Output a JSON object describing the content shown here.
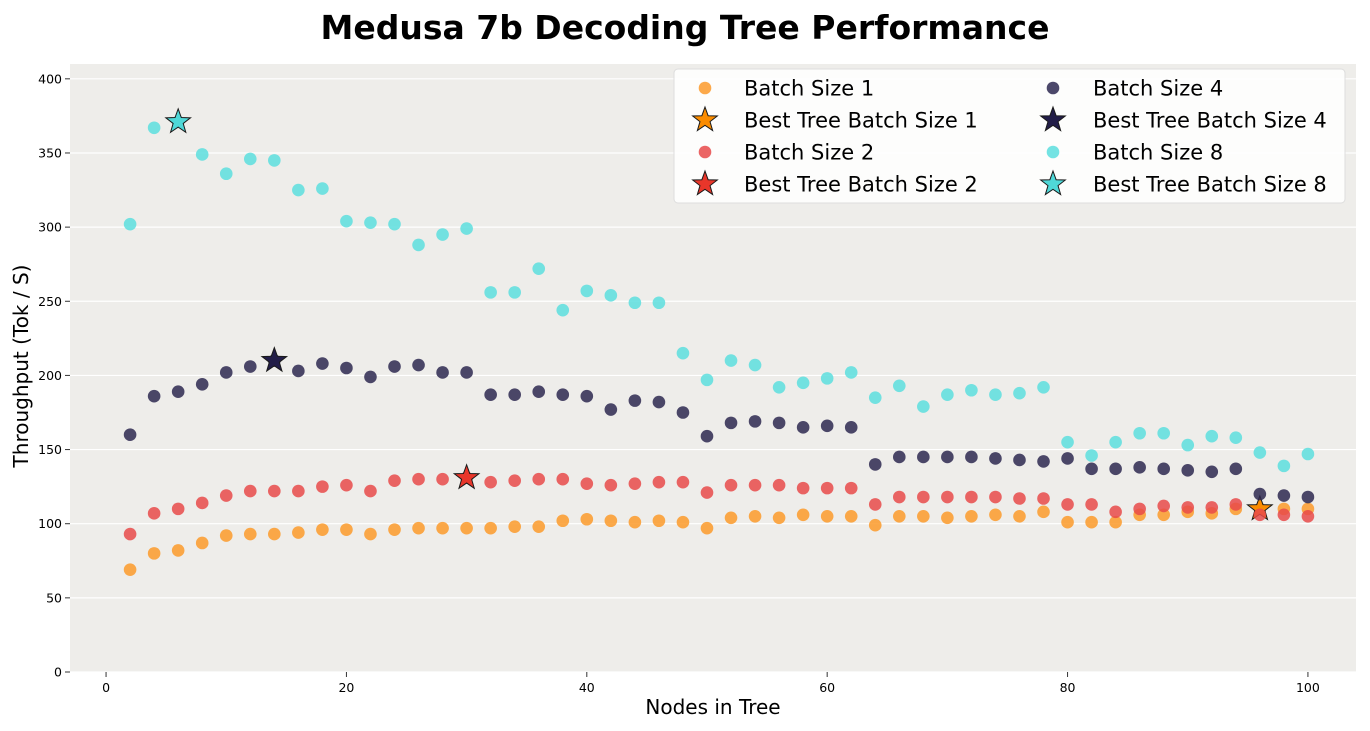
{
  "chart_data": {
    "type": "scatter",
    "title": "Medusa 7b Decoding Tree Performance",
    "xlabel": "Nodes in Tree",
    "ylabel": "Throughput (Tok / S)",
    "xlim": [
      -3,
      104
    ],
    "ylim": [
      0,
      410
    ],
    "xticks": [
      0,
      20,
      40,
      60,
      80,
      100
    ],
    "yticks": [
      0,
      50,
      100,
      150,
      200,
      250,
      300,
      350,
      400
    ],
    "grid": "horizontal",
    "legend_position": "top-right",
    "background": "#eeedea",
    "series": [
      {
        "name": "Batch Size 1",
        "marker": "circle",
        "color": "#fb9a2a",
        "x": [
          2,
          4,
          6,
          8,
          10,
          12,
          14,
          16,
          18,
          20,
          22,
          24,
          26,
          28,
          30,
          32,
          34,
          36,
          38,
          40,
          42,
          44,
          46,
          48,
          50,
          52,
          54,
          56,
          58,
          60,
          62,
          64,
          66,
          68,
          70,
          72,
          74,
          76,
          78,
          80,
          82,
          84,
          86,
          88,
          90,
          92,
          94,
          96,
          98,
          100
        ],
        "y": [
          69,
          80,
          82,
          87,
          92,
          93,
          93,
          94,
          96,
          96,
          93,
          96,
          97,
          97,
          97,
          97,
          98,
          98,
          102,
          103,
          102,
          101,
          102,
          101,
          97,
          104,
          105,
          104,
          106,
          105,
          105,
          99,
          105,
          105,
          104,
          105,
          106,
          105,
          108,
          101,
          101,
          101,
          106,
          106,
          108,
          107,
          110,
          110,
          110,
          110
        ]
      },
      {
        "name": "Best Tree Batch Size 1",
        "marker": "star",
        "color": "#fb8c00",
        "x": [
          96
        ],
        "y": [
          110
        ]
      },
      {
        "name": "Batch Size 2",
        "marker": "circle",
        "color": "#e84a4a",
        "x": [
          2,
          4,
          6,
          8,
          10,
          12,
          14,
          16,
          18,
          20,
          22,
          24,
          26,
          28,
          30,
          32,
          34,
          36,
          38,
          40,
          42,
          44,
          46,
          48,
          50,
          52,
          54,
          56,
          58,
          60,
          62,
          64,
          66,
          68,
          70,
          72,
          74,
          76,
          78,
          80,
          82,
          84,
          86,
          88,
          90,
          92,
          94,
          96,
          98,
          100
        ],
        "y": [
          93,
          107,
          110,
          114,
          119,
          122,
          122,
          122,
          125,
          126,
          122,
          129,
          130,
          130,
          131,
          128,
          129,
          130,
          130,
          127,
          126,
          127,
          128,
          128,
          121,
          126,
          126,
          126,
          124,
          124,
          124,
          113,
          118,
          118,
          118,
          118,
          118,
          117,
          117,
          113,
          113,
          108,
          110,
          112,
          111,
          111,
          113,
          106,
          106,
          105
        ]
      },
      {
        "name": "Best Tree Batch Size 2",
        "marker": "star",
        "color": "#e8362a",
        "x": [
          30
        ],
        "y": [
          131
        ]
      },
      {
        "name": "Batch Size 4",
        "marker": "circle",
        "color": "#2d2850",
        "x": [
          2,
          4,
          6,
          8,
          10,
          12,
          14,
          16,
          18,
          20,
          22,
          24,
          26,
          28,
          30,
          32,
          34,
          36,
          38,
          40,
          42,
          44,
          46,
          48,
          50,
          52,
          54,
          56,
          58,
          60,
          62,
          64,
          66,
          68,
          70,
          72,
          74,
          76,
          78,
          80,
          82,
          84,
          86,
          88,
          90,
          92,
          94,
          96,
          98,
          100
        ],
        "y": [
          160,
          186,
          189,
          194,
          202,
          206,
          210,
          203,
          208,
          205,
          199,
          206,
          207,
          202,
          202,
          187,
          187,
          189,
          187,
          186,
          177,
          183,
          182,
          175,
          159,
          168,
          169,
          168,
          165,
          166,
          165,
          140,
          145,
          145,
          145,
          145,
          144,
          143,
          142,
          144,
          137,
          137,
          138,
          137,
          136,
          135,
          137,
          120,
          119,
          118
        ]
      },
      {
        "name": "Best Tree Batch Size 4",
        "marker": "star",
        "color": "#221d48",
        "x": [
          14
        ],
        "y": [
          210
        ]
      },
      {
        "name": "Batch Size 8",
        "marker": "circle",
        "color": "#5cdede",
        "x": [
          2,
          4,
          6,
          8,
          10,
          12,
          14,
          16,
          18,
          20,
          22,
          24,
          26,
          28,
          30,
          32,
          34,
          36,
          38,
          40,
          42,
          44,
          46,
          48,
          50,
          52,
          54,
          56,
          58,
          60,
          62,
          64,
          66,
          68,
          70,
          72,
          74,
          76,
          78,
          80,
          82,
          84,
          86,
          88,
          90,
          92,
          94,
          96,
          98,
          100
        ],
        "y": [
          302,
          367,
          371,
          349,
          336,
          346,
          345,
          325,
          326,
          304,
          303,
          302,
          288,
          295,
          299,
          256,
          256,
          272,
          244,
          257,
          254,
          249,
          249,
          215,
          197,
          210,
          207,
          192,
          195,
          198,
          202,
          185,
          193,
          179,
          187,
          190,
          187,
          188,
          192,
          155,
          146,
          155,
          161,
          161,
          153,
          159,
          158,
          148,
          139,
          147
        ]
      },
      {
        "name": "Best Tree Batch Size 8",
        "marker": "star",
        "color": "#4fd8d8",
        "x": [
          6
        ],
        "y": [
          371
        ]
      }
    ]
  }
}
